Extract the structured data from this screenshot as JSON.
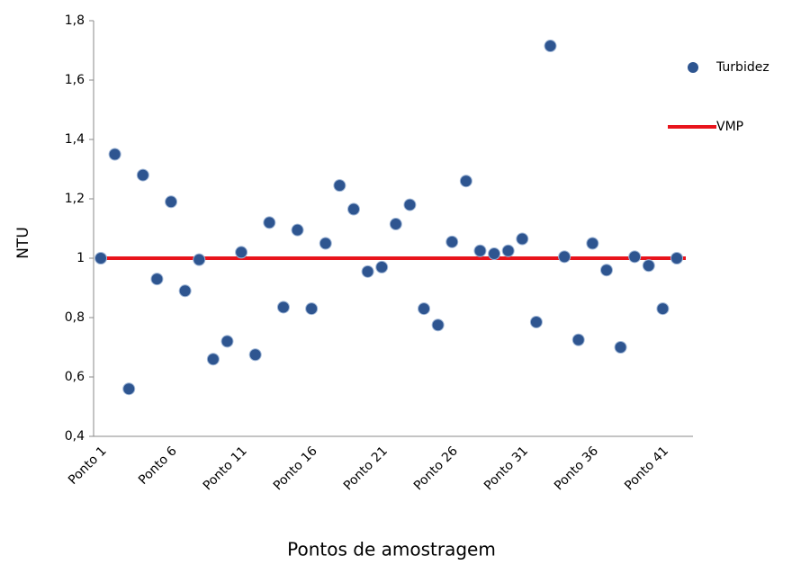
{
  "chart_data": {
    "type": "scatter",
    "x_label": "Pontos de amostragem",
    "y_label": "NTU",
    "categories": [
      "Ponto 1",
      null,
      null,
      null,
      null,
      "Ponto 6",
      null,
      null,
      null,
      null,
      "Ponto 11",
      null,
      null,
      null,
      null,
      "Ponto 16",
      null,
      null,
      null,
      null,
      "Ponto 21",
      null,
      null,
      null,
      null,
      "Ponto 26",
      null,
      null,
      null,
      null,
      "Ponto 31",
      null,
      null,
      null,
      null,
      "Ponto 36",
      null,
      null,
      null,
      null,
      "Ponto 41",
      null
    ],
    "series": [
      {
        "name": "Turbidez",
        "color": "#2e5590",
        "values": [
          1.0,
          1.35,
          0.56,
          1.28,
          0.93,
          1.19,
          0.89,
          0.995,
          0.66,
          0.72,
          1.02,
          0.675,
          1.12,
          0.835,
          1.095,
          0.83,
          1.05,
          1.245,
          1.165,
          0.955,
          0.97,
          1.115,
          1.18,
          0.83,
          0.775,
          1.055,
          1.26,
          1.025,
          1.015,
          1.025,
          1.065,
          0.785,
          1.715,
          1.005,
          0.725,
          1.05,
          0.96,
          0.7,
          1.005,
          0.975,
          0.83,
          1.0
        ]
      }
    ],
    "reference": {
      "name": "VMP",
      "color": "#e8141c",
      "value": 1
    },
    "ylim": [
      0.4,
      1.8
    ],
    "yticks": [
      {
        "value": 0.4,
        "label": "0,4"
      },
      {
        "value": 0.6,
        "label": "0,6"
      },
      {
        "value": 0.8,
        "label": "0,8"
      },
      1,
      {
        "value": 1.2,
        "label": "1,2"
      },
      {
        "value": 1.4,
        "label": "1,4"
      },
      {
        "value": 1.6,
        "label": "1,6"
      },
      {
        "value": 1.8,
        "label": "1,8"
      }
    ],
    "legend": "right"
  }
}
